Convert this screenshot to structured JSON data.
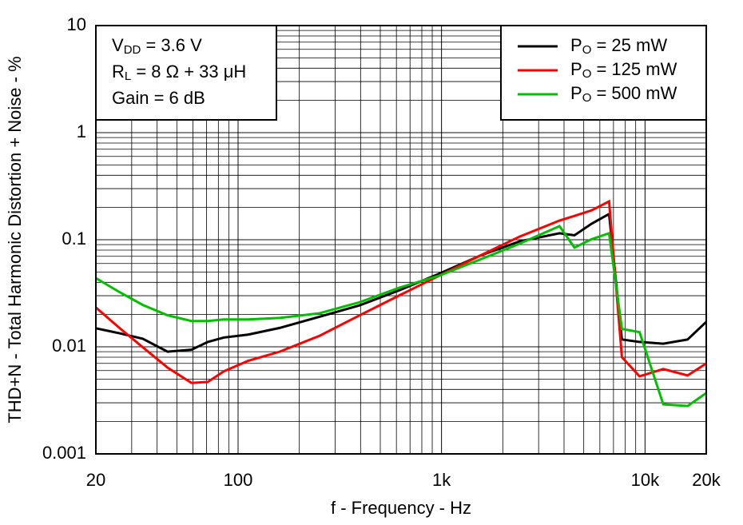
{
  "chart_data": {
    "type": "line",
    "x_label": "f - Frequency - Hz",
    "y_label": "THD+N - Total Harmonic Distortion + Noise - %",
    "log_x": true,
    "log_y": true,
    "grid": true,
    "legend": "upper right",
    "annotations": [
      {
        "base": "V",
        "sub": "DD",
        "rest": " = 3.6 V"
      },
      {
        "base": "R",
        "sub": "L",
        "rest": " = 8 Ω + 33 μH"
      },
      {
        "base": "Gain = 6 dB"
      }
    ],
    "xlim": [
      20,
      20000
    ],
    "ylim": [
      0.001,
      10
    ],
    "xticks": [
      20,
      100,
      {
        "value": 1000,
        "label": "1k"
      },
      {
        "value": 10000,
        "label": "10k"
      },
      {
        "value": 20000,
        "label": "20k"
      }
    ],
    "yticks": [
      0.001,
      0.01,
      0.1,
      1,
      10
    ],
    "x": [
      20,
      26,
      34,
      45,
      59,
      71,
      85,
      112,
      160,
      252,
      396,
      622,
      980,
      1540,
      2420,
      3800,
      4500,
      5460,
      6660,
      7700,
      9400,
      12300,
      16200,
      20000
    ],
    "series": [
      {
        "name": "PO = 25 mW",
        "color": "#000000",
        "values": [
          0.0149,
          0.0134,
          0.0119,
          0.009,
          0.0094,
          0.0111,
          0.0122,
          0.013,
          0.015,
          0.0191,
          0.0244,
          0.0338,
          0.0484,
          0.0708,
          0.0966,
          0.115,
          0.11,
          0.141,
          0.174,
          0.0117,
          0.0111,
          0.0107,
          0.0117,
          0.0171
        ]
      },
      {
        "name": "PO = 125 mW",
        "color": "#ff0000",
        "values": [
          0.0233,
          0.0151,
          0.0099,
          0.0064,
          0.0046,
          0.0047,
          0.0059,
          0.0074,
          0.009,
          0.0127,
          0.0197,
          0.0303,
          0.0464,
          0.0708,
          0.107,
          0.151,
          0.167,
          0.188,
          0.228,
          0.008,
          0.0053,
          0.0062,
          0.0054,
          0.007
        ]
      },
      {
        "name": "PO = 500 mW",
        "color": "#00c000",
        "values": [
          0.0438,
          0.0326,
          0.0246,
          0.0197,
          0.0174,
          0.0174,
          0.018,
          0.018,
          0.0186,
          0.0206,
          0.0261,
          0.0357,
          0.0464,
          0.0651,
          0.0919,
          0.134,
          0.0845,
          0.101,
          0.115,
          0.0147,
          0.0137,
          0.0029,
          0.0028,
          0.0037
        ]
      }
    ]
  }
}
